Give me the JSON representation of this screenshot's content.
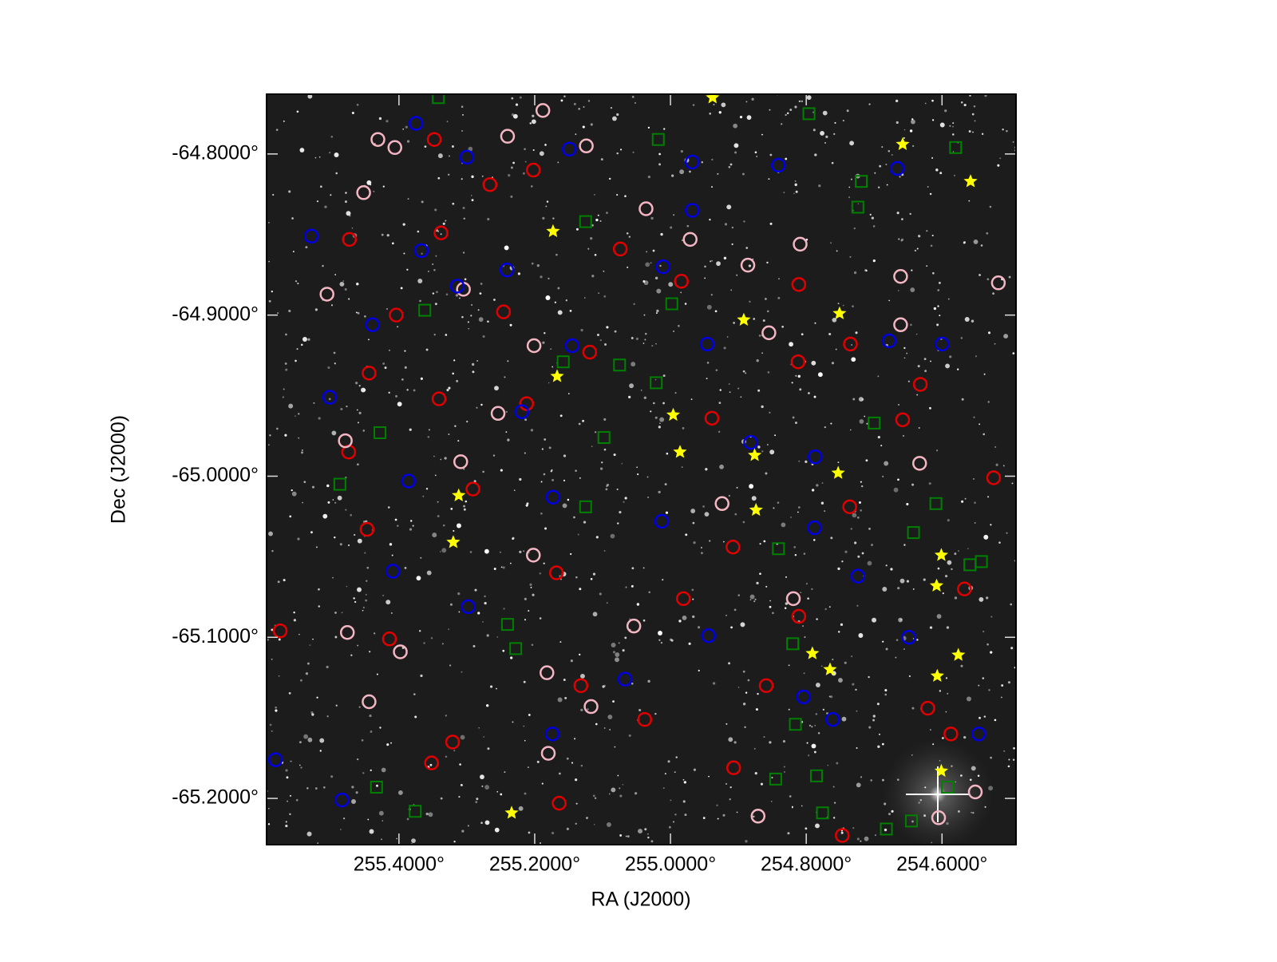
{
  "chart_data": {
    "type": "scatter",
    "xlabel": "RA (J2000)",
    "ylabel": "Dec (J2000)",
    "xlim": [
      255.595,
      254.491
    ],
    "ylim": [
      -65.2287,
      -64.7629
    ],
    "xticks": [
      {
        "value": 255.4,
        "label": "255.4000°"
      },
      {
        "value": 255.2,
        "label": "255.2000°"
      },
      {
        "value": 255.0,
        "label": "255.0000°"
      },
      {
        "value": 254.8,
        "label": "254.8000°"
      },
      {
        "value": 254.6,
        "label": "254.6000°"
      }
    ],
    "yticks": [
      {
        "value": -64.8,
        "label": "-64.8000°"
      },
      {
        "value": -64.9,
        "label": "-64.9000°"
      },
      {
        "value": -65.0,
        "label": "-65.0000°"
      },
      {
        "value": -65.1,
        "label": "-65.1000°"
      },
      {
        "value": -65.2,
        "label": "-65.2000°"
      }
    ],
    "series": [
      {
        "marker": "circle",
        "color": "#e00000",
        "x": [
          255.348,
          255.266,
          255.202,
          255.338,
          255.473,
          255.074,
          254.984,
          254.811,
          255.246,
          255.404,
          254.735,
          255.119,
          254.812,
          255.341,
          255.212,
          255.444,
          254.632,
          254.939,
          254.658,
          255.474,
          255.291,
          254.524,
          254.736,
          255.447,
          254.908,
          255.168,
          254.981,
          254.811,
          255.575,
          255.414,
          255.132,
          254.621,
          254.859,
          255.038,
          254.587,
          255.321,
          255.352,
          254.907,
          255.164,
          254.567,
          254.747
        ],
        "y": [
          -64.791,
          -64.819,
          -64.81,
          -64.849,
          -64.853,
          -64.859,
          -64.879,
          -64.881,
          -64.898,
          -64.9,
          -64.918,
          -64.923,
          -64.929,
          -64.952,
          -64.955,
          -64.936,
          -64.943,
          -64.964,
          -64.965,
          -64.985,
          -65.008,
          -65.001,
          -65.019,
          -65.033,
          -65.044,
          -65.06,
          -65.076,
          -65.087,
          -65.096,
          -65.101,
          -65.13,
          -65.144,
          -65.13,
          -65.151,
          -65.16,
          -65.165,
          -65.178,
          -65.181,
          -65.203,
          -65.07,
          -65.223
        ]
      },
      {
        "marker": "circle",
        "color": "#f4b6c2",
        "x": [
          255.431,
          255.406,
          255.452,
          255.24,
          255.188,
          255.124,
          255.036,
          254.971,
          254.886,
          254.809,
          254.661,
          254.517,
          255.305,
          255.506,
          255.201,
          254.855,
          254.661,
          255.254,
          255.479,
          254.633,
          255.309,
          254.924,
          255.202,
          255.476,
          255.398,
          255.054,
          255.182,
          255.117,
          254.819,
          254.605,
          254.551,
          255.444,
          255.18,
          254.871
        ],
        "y": [
          -64.791,
          -64.796,
          -64.824,
          -64.789,
          -64.773,
          -64.795,
          -64.834,
          -64.853,
          -64.869,
          -64.856,
          -64.876,
          -64.88,
          -64.884,
          -64.887,
          -64.919,
          -64.911,
          -64.906,
          -64.961,
          -64.978,
          -64.992,
          -64.991,
          -65.017,
          -65.049,
          -65.097,
          -65.109,
          -65.093,
          -65.122,
          -65.143,
          -65.076,
          -65.212,
          -65.196,
          -65.14,
          -65.172,
          -65.211
        ]
      },
      {
        "marker": "circle",
        "color": "#0000e0",
        "x": [
          255.375,
          255.3,
          255.149,
          254.968,
          254.841,
          254.666,
          255.529,
          255.367,
          255.241,
          255.011,
          254.968,
          255.314,
          255.439,
          255.145,
          254.946,
          254.678,
          254.6,
          255.502,
          255.219,
          254.882,
          254.787,
          255.386,
          255.173,
          255.013,
          254.788,
          255.409,
          255.298,
          254.724,
          254.649,
          254.944,
          255.067,
          254.804,
          254.761,
          255.174,
          254.546,
          255.484,
          255.582
        ],
        "y": [
          -64.781,
          -64.802,
          -64.797,
          -64.805,
          -64.807,
          -64.809,
          -64.851,
          -64.86,
          -64.872,
          -64.87,
          -64.835,
          -64.882,
          -64.906,
          -64.919,
          -64.918,
          -64.916,
          -64.918,
          -64.951,
          -64.96,
          -64.979,
          -64.988,
          -65.003,
          -65.013,
          -65.028,
          -65.032,
          -65.059,
          -65.081,
          -65.062,
          -65.1,
          -65.099,
          -65.126,
          -65.137,
          -65.151,
          -65.16,
          -65.16,
          -65.201,
          -65.176
        ]
      },
      {
        "marker": "square",
        "color": "#008000",
        "x": [
          255.018,
          254.796,
          254.719,
          254.724,
          254.58,
          255.125,
          255.362,
          254.998,
          255.158,
          255.075,
          255.021,
          255.098,
          254.7,
          255.428,
          255.487,
          255.125,
          254.609,
          254.642,
          254.841,
          254.559,
          254.542,
          255.24,
          255.228,
          254.82,
          254.816,
          254.845,
          254.785,
          254.776,
          254.592,
          254.645,
          254.682,
          255.376,
          255.433,
          255.342
        ],
        "y": [
          -64.791,
          -64.775,
          -64.817,
          -64.833,
          -64.796,
          -64.842,
          -64.897,
          -64.893,
          -64.929,
          -64.931,
          -64.942,
          -64.976,
          -64.967,
          -64.973,
          -65.005,
          -65.019,
          -65.017,
          -65.035,
          -65.045,
          -65.055,
          -65.053,
          -65.092,
          -65.107,
          -65.104,
          -65.154,
          -65.188,
          -65.186,
          -65.209,
          -65.193,
          -65.214,
          -65.219,
          -65.208,
          -65.193,
          -64.765
        ]
      },
      {
        "marker": "star",
        "color": "#ffff00",
        "x": [
          255.173,
          255.167,
          254.996,
          254.986,
          254.876,
          254.874,
          254.892,
          254.751,
          254.753,
          254.658,
          254.558,
          255.312,
          255.32,
          254.601,
          254.608,
          254.576,
          254.607,
          254.791,
          254.765,
          254.601,
          255.234,
          254.938
        ],
        "y": [
          -64.848,
          -64.938,
          -64.962,
          -64.985,
          -64.987,
          -65.021,
          -64.903,
          -64.899,
          -64.998,
          -64.794,
          -64.817,
          -65.012,
          -65.041,
          -65.049,
          -65.068,
          -65.111,
          -65.124,
          -65.11,
          -65.12,
          -65.183,
          -65.209,
          -64.765
        ]
      }
    ]
  }
}
